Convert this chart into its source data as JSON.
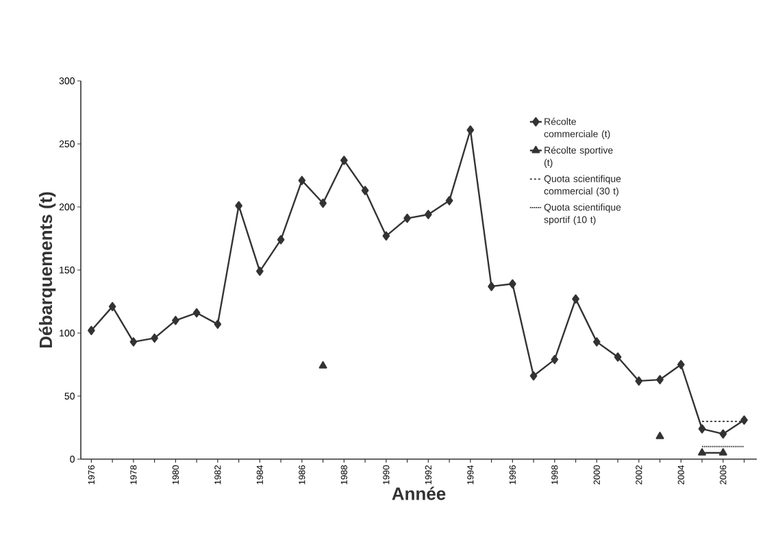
{
  "chart_data": {
    "type": "line",
    "xlabel": "Année",
    "ylabel": "Débarquements (t)",
    "categories": [
      "1976",
      null,
      "1978",
      null,
      "1980",
      null,
      "1982",
      null,
      "1984",
      null,
      "1986",
      null,
      "1988",
      null,
      "1990",
      null,
      "1992",
      null,
      "1994",
      null,
      "1996",
      null,
      "1998",
      null,
      "2000",
      null,
      "2002",
      null,
      "2004",
      null,
      "2006",
      null
    ],
    "series": [
      {
        "name": "Récolte commerciale (t)",
        "color": "#333333",
        "marker": "diamond",
        "line_style": "solid",
        "values": [
          102,
          121,
          93,
          96,
          110,
          116,
          107,
          201,
          149,
          174,
          221,
          203,
          237,
          213,
          177,
          191,
          194,
          205,
          261,
          137,
          139,
          66,
          79,
          127,
          93,
          81,
          62,
          63,
          75,
          24,
          20,
          31
        ]
      },
      {
        "name": "Récolte sportive (t)",
        "color": "#333333",
        "marker": "triangle",
        "line_style": "solid",
        "values": [
          null,
          null,
          null,
          null,
          null,
          null,
          null,
          null,
          null,
          null,
          null,
          74,
          null,
          null,
          null,
          null,
          null,
          null,
          null,
          null,
          null,
          null,
          null,
          null,
          null,
          null,
          null,
          18,
          null,
          5,
          5,
          null
        ]
      },
      {
        "name": "Quota scientifique commercial (30 t)",
        "color": "#333333",
        "marker": "none",
        "line_style": "dashed",
        "values": [
          null,
          null,
          null,
          null,
          null,
          null,
          null,
          null,
          null,
          null,
          null,
          null,
          null,
          null,
          null,
          null,
          null,
          null,
          null,
          null,
          null,
          null,
          null,
          null,
          null,
          null,
          null,
          null,
          null,
          30,
          30,
          30
        ]
      },
      {
        "name": "Quota scientifique sportif (10 t)",
        "color": "#333333",
        "marker": "none",
        "line_style": "dotted",
        "values": [
          null,
          null,
          null,
          null,
          null,
          null,
          null,
          null,
          null,
          null,
          null,
          null,
          null,
          null,
          null,
          null,
          null,
          null,
          null,
          null,
          null,
          null,
          null,
          null,
          null,
          null,
          null,
          null,
          null,
          10,
          10,
          10
        ]
      }
    ],
    "ylim": [
      0,
      300
    ],
    "yticks": [
      0,
      50,
      100,
      150,
      200,
      250,
      300
    ],
    "legend": "top right"
  }
}
